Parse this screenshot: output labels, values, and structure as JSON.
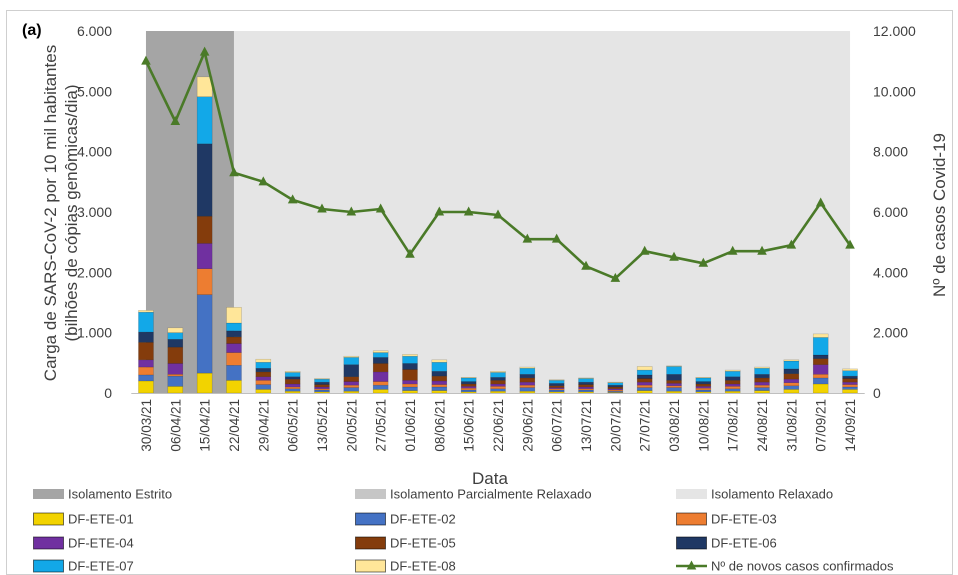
{
  "panel_label": "(a)",
  "chart_data": {
    "type": "bar",
    "stacked": true,
    "secondary_type": "line",
    "categories": [
      "30/03/21",
      "06/04/21",
      "15/04/21",
      "22/04/21",
      "29/04/21",
      "06/05/21",
      "13/05/21",
      "20/05/21",
      "27/05/21",
      "01/06/21",
      "08/06/21",
      "15/06/21",
      "22/06/21",
      "29/06/21",
      "06/07/21",
      "13/07/21",
      "20/07/21",
      "27/07/21",
      "03/08/21",
      "10/08/21",
      "17/08/21",
      "24/08/21",
      "31/08/21",
      "07/09/21",
      "14/09/21"
    ],
    "xlabel": "Data",
    "ylabel": [
      "Carga de SARS-CoV-2 por 10 mil habitantes",
      "(bilhões de cópias genômicas/dia)"
    ],
    "ylim": [
      0,
      6000
    ],
    "yticks": [
      0,
      1000,
      2000,
      3000,
      4000,
      5000,
      6000
    ],
    "ytick_labels": [
      "0",
      "1.000",
      "2.000",
      "3.000",
      "4.000",
      "5.000",
      "6.000"
    ],
    "y2label": "Nº de casos Covid-19",
    "y2lim": [
      0,
      12000
    ],
    "y2ticks": [
      0,
      2000,
      4000,
      6000,
      8000,
      10000,
      12000
    ],
    "y2tick_labels": [
      "0",
      "2.000",
      "4.000",
      "6.000",
      "8.000",
      "10.000",
      "12.000"
    ],
    "grid": false,
    "legend_position": "bottom",
    "background_periods": [
      {
        "name": "Isolamento Estrito",
        "color": "#a5a5a5",
        "from": "30/03/21",
        "to": "22/04/21"
      },
      {
        "name": "Isolamento Parcialmente Relaxado",
        "color": "#c6c6c6"
      },
      {
        "name": "Isolamento Relaxado",
        "color": "#e5e5e5",
        "from": "22/04/21",
        "to": "14/09/21"
      }
    ],
    "series": [
      {
        "name": "DF-ETE-01",
        "color": "#f2d300",
        "values": [
          200,
          110,
          330,
          210,
          60,
          30,
          20,
          30,
          60,
          40,
          40,
          20,
          30,
          30,
          20,
          20,
          10,
          40,
          30,
          20,
          30,
          40,
          60,
          150,
          60
        ]
      },
      {
        "name": "DF-ETE-02",
        "color": "#4472c4",
        "values": [
          100,
          170,
          1300,
          250,
          80,
          40,
          30,
          60,
          70,
          60,
          60,
          30,
          40,
          60,
          30,
          30,
          20,
          50,
          60,
          30,
          40,
          50,
          60,
          100,
          40
        ]
      },
      {
        "name": "DF-ETE-03",
        "color": "#ed7d31",
        "values": [
          130,
          30,
          430,
          210,
          70,
          30,
          20,
          40,
          60,
          50,
          40,
          30,
          40,
          40,
          20,
          20,
          20,
          40,
          30,
          30,
          40,
          40,
          50,
          60,
          40
        ]
      },
      {
        "name": "DF-ETE-04",
        "color": "#7030a0",
        "values": [
          120,
          180,
          420,
          150,
          60,
          50,
          30,
          60,
          160,
          60,
          60,
          30,
          40,
          50,
          20,
          30,
          20,
          50,
          40,
          30,
          40,
          50,
          60,
          160,
          40
        ]
      },
      {
        "name": "DF-ETE-05",
        "color": "#843c0c",
        "values": [
          290,
          270,
          450,
          110,
          80,
          80,
          40,
          80,
          140,
          180,
          80,
          40,
          60,
          70,
          30,
          40,
          30,
          60,
          50,
          40,
          60,
          70,
          90,
          100,
          60
        ]
      },
      {
        "name": "DF-ETE-06",
        "color": "#1f3864",
        "values": [
          170,
          130,
          1200,
          100,
          60,
          40,
          40,
          200,
          100,
          100,
          80,
          40,
          50,
          60,
          40,
          40,
          30,
          60,
          100,
          40,
          60,
          60,
          80,
          60,
          40
        ]
      },
      {
        "name": "DF-ETE-07",
        "color": "#12a8e8",
        "values": [
          330,
          110,
          780,
          130,
          100,
          70,
          50,
          120,
          80,
          120,
          150,
          60,
          80,
          100,
          50,
          60,
          40,
          80,
          130,
          60,
          90,
          100,
          130,
          290,
          90
        ]
      },
      {
        "name": "DF-ETE-08",
        "color": "#ffe699",
        "values": [
          30,
          80,
          330,
          260,
          50,
          20,
          10,
          20,
          30,
          30,
          40,
          10,
          20,
          20,
          10,
          10,
          10,
          60,
          10,
          10,
          20,
          20,
          20,
          60,
          30
        ]
      }
    ],
    "line_series": {
      "name": "Nº de novos casos confirmados",
      "color": "#4a7a28",
      "marker": "triangle",
      "axis": "right",
      "values": [
        11000,
        9000,
        11300,
        7300,
        7000,
        6400,
        6100,
        6000,
        6100,
        4600,
        6000,
        6000,
        5900,
        5100,
        5100,
        4200,
        3800,
        4700,
        4500,
        4300,
        4700,
        4700,
        4900,
        6300,
        4900
      ]
    }
  }
}
